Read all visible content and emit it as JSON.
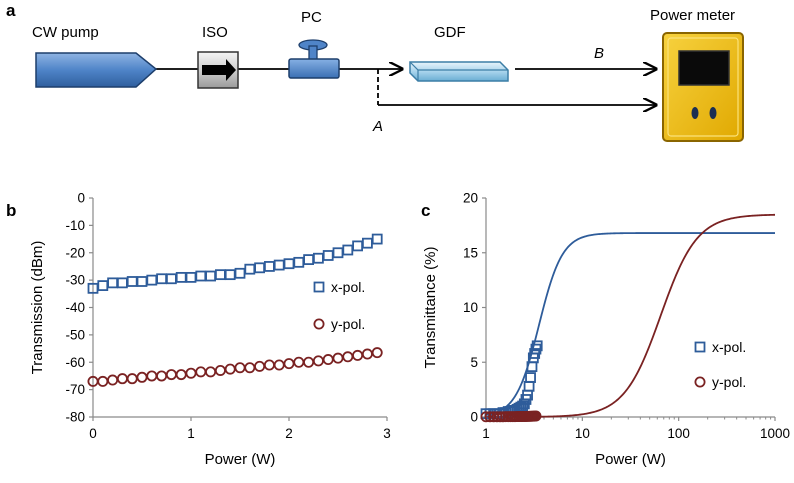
{
  "panel_a": {
    "letter": "a",
    "components": {
      "pump": "CW pump",
      "isolator": "ISO",
      "polarization_controller": "PC",
      "fiber": "GDF",
      "meter": "Power meter"
    },
    "path_a": "A",
    "path_b": "B"
  },
  "colors": {
    "x_pol": "#2e5c9a",
    "y_pol": "#7a2222",
    "device_blue": "#5b8fcf",
    "meter_yellow": "#f2c21b"
  },
  "chart_data": [
    {
      "panel": "b",
      "type": "scatter",
      "xlabel": "Power (W)",
      "ylabel": "Transmission (dBm)",
      "xlim": [
        0,
        3
      ],
      "ylim": [
        -80,
        0
      ],
      "xticks": [
        "0",
        "1",
        "2",
        "3"
      ],
      "yticks": [
        "0",
        "-10",
        "-20",
        "-30",
        "-40",
        "-50",
        "-60",
        "-70",
        "-80"
      ],
      "grid": false,
      "legend_position": "right",
      "series": [
        {
          "name": "x-pol.",
          "marker": "square",
          "x": [
            0,
            0.1,
            0.2,
            0.3,
            0.4,
            0.5,
            0.6,
            0.7,
            0.8,
            0.9,
            1.0,
            1.1,
            1.2,
            1.3,
            1.4,
            1.5,
            1.6,
            1.7,
            1.8,
            1.9,
            2.0,
            2.1,
            2.2,
            2.3,
            2.4,
            2.5,
            2.6,
            2.7,
            2.8,
            2.9
          ],
          "y": [
            -33,
            -32,
            -31,
            -31,
            -30.5,
            -30.5,
            -30,
            -29.5,
            -29.5,
            -29,
            -29,
            -28.5,
            -28.5,
            -28,
            -28,
            -27.5,
            -26,
            -25.5,
            -25,
            -24.5,
            -24,
            -23.5,
            -22.5,
            -22,
            -21,
            -20,
            -19,
            -17.5,
            -16.5,
            -15
          ]
        },
        {
          "name": "y-pol.",
          "marker": "circle",
          "x": [
            0,
            0.1,
            0.2,
            0.3,
            0.4,
            0.5,
            0.6,
            0.7,
            0.8,
            0.9,
            1.0,
            1.1,
            1.2,
            1.3,
            1.4,
            1.5,
            1.6,
            1.7,
            1.8,
            1.9,
            2.0,
            2.1,
            2.2,
            2.3,
            2.4,
            2.5,
            2.6,
            2.7,
            2.8,
            2.9
          ],
          "y": [
            -67,
            -67,
            -66.5,
            -66,
            -66,
            -65.5,
            -65,
            -65,
            -64.5,
            -64.5,
            -64,
            -63.5,
            -63.5,
            -63,
            -62.5,
            -62,
            -62,
            -61.5,
            -61,
            -61,
            -60.5,
            -60,
            -60,
            -59.5,
            -59,
            -58.5,
            -58,
            -57.5,
            -57,
            -56.5
          ]
        }
      ]
    },
    {
      "panel": "c",
      "type": "scatter",
      "xlabel": "Power (W)",
      "ylabel": "Transmittance (%)",
      "xscale": "log",
      "xlim": [
        1,
        1000
      ],
      "ylim": [
        0,
        20
      ],
      "xticks": [
        "1",
        "10",
        "100",
        "1000"
      ],
      "yticks": [
        "0",
        "5",
        "10",
        "15",
        "20"
      ],
      "grid": false,
      "legend_position": "right",
      "series": [
        {
          "name": "x-pol.",
          "marker": "square",
          "x": [
            1.0,
            1.1,
            1.2,
            1.3,
            1.4,
            1.5,
            1.6,
            1.7,
            1.8,
            1.9,
            2.0,
            2.1,
            2.2,
            2.3,
            2.4,
            2.5,
            2.6,
            2.7,
            2.8,
            2.9,
            3.0,
            3.1,
            3.2,
            3.3,
            3.4
          ],
          "y": [
            0.3,
            0.3,
            0.3,
            0.3,
            0.3,
            0.4,
            0.4,
            0.5,
            0.5,
            0.6,
            0.6,
            0.7,
            0.8,
            0.9,
            1.0,
            1.2,
            1.6,
            2.0,
            2.8,
            3.6,
            4.6,
            5.4,
            5.8,
            6.2,
            6.5
          ]
        },
        {
          "name": "y-pol.",
          "marker": "circle",
          "x": [
            1.0,
            1.1,
            1.2,
            1.3,
            1.4,
            1.5,
            1.6,
            1.7,
            1.8,
            1.9,
            2.0,
            2.1,
            2.2,
            2.3,
            2.4,
            2.5,
            2.6,
            2.7,
            2.8,
            2.9,
            3.0,
            3.1,
            3.2,
            3.3
          ],
          "y": [
            0.02,
            0.02,
            0.02,
            0.02,
            0.02,
            0.02,
            0.03,
            0.03,
            0.03,
            0.03,
            0.03,
            0.04,
            0.04,
            0.04,
            0.05,
            0.05,
            0.05,
            0.06,
            0.06,
            0.07,
            0.07,
            0.08,
            0.08,
            0.09
          ]
        },
        {
          "name": "x-pol. fit",
          "type": "line",
          "model": "logistic",
          "Tmax": 16.8,
          "P50": 3.55,
          "n": 3.6
        },
        {
          "name": "y-pol. fit",
          "type": "line",
          "model": "logistic",
          "Tmax": 18.5,
          "P50": 65,
          "n": 2.3
        }
      ]
    }
  ]
}
